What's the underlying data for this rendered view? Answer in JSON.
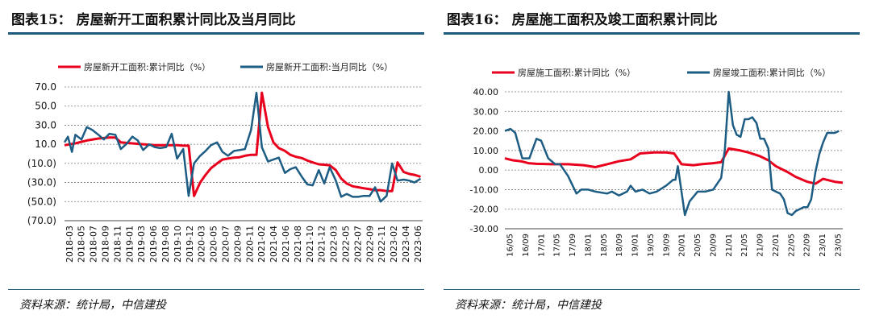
{
  "chart_data": [
    {
      "type": "line",
      "title": "图表15： 房屋新开工面积累计同比及当月同比",
      "source": "资料来源：统计局，中信建投",
      "yticks": [
        "70.0",
        "50.0",
        "30.0",
        "10.0",
        "(10.0)",
        "(30.0)",
        "(50.0)",
        "(70.0)"
      ],
      "ylim": [
        -70,
        70
      ],
      "xticks": [
        "2018-03",
        "2018-05",
        "2018-07",
        "2018-09",
        "2018-11",
        "2019-01",
        "2019-03",
        "2019-06",
        "2019-08",
        "2019-10",
        "2019-12",
        "2020-03",
        "2020-05",
        "2020-07",
        "2020-09",
        "2020-11",
        "2021-02",
        "2021-04",
        "2021-06",
        "2021-08",
        "2021-10",
        "2021-12",
        "2022-03",
        "2022-05",
        "2022-07",
        "2022-09",
        "2022-11",
        "2023-02",
        "2023-04",
        "2023-06"
      ],
      "xlim": [
        2018.17,
        2023.45
      ],
      "colors": {
        "s1": "#e8001c",
        "s2": "#1d5c83"
      },
      "series": [
        {
          "name": "房屋新开工面积:累计同比（%）",
          "points": [
            [
              2018.17,
              9
            ],
            [
              2018.33,
              11
            ],
            [
              2018.5,
              14
            ],
            [
              2018.67,
              16
            ],
            [
              2018.83,
              17
            ],
            [
              2018.92,
              17
            ],
            [
              2019.0,
              12
            ],
            [
              2019.17,
              11
            ],
            [
              2019.33,
              10
            ],
            [
              2019.5,
              9
            ],
            [
              2019.67,
              9
            ],
            [
              2019.83,
              9
            ],
            [
              2019.92,
              8.5
            ],
            [
              2020.0,
              8.5
            ],
            [
              2020.08,
              -44
            ],
            [
              2020.17,
              -30
            ],
            [
              2020.25,
              -22
            ],
            [
              2020.33,
              -15
            ],
            [
              2020.42,
              -10
            ],
            [
              2020.5,
              -6
            ],
            [
              2020.58,
              -5
            ],
            [
              2020.67,
              -4
            ],
            [
              2020.75,
              -3.5
            ],
            [
              2020.83,
              -2
            ],
            [
              2020.92,
              -1
            ],
            [
              2021.0,
              -1
            ],
            [
              2021.08,
              64
            ],
            [
              2021.17,
              28
            ],
            [
              2021.25,
              12
            ],
            [
              2021.33,
              6
            ],
            [
              2021.42,
              3
            ],
            [
              2021.5,
              -1
            ],
            [
              2021.58,
              -3
            ],
            [
              2021.67,
              -4.5
            ],
            [
              2021.75,
              -7
            ],
            [
              2021.83,
              -9
            ],
            [
              2021.92,
              -11
            ],
            [
              2022.0,
              -11.4
            ],
            [
              2022.08,
              -12
            ],
            [
              2022.17,
              -17
            ],
            [
              2022.25,
              -26
            ],
            [
              2022.33,
              -31
            ],
            [
              2022.42,
              -34
            ],
            [
              2022.5,
              -35
            ],
            [
              2022.58,
              -36
            ],
            [
              2022.67,
              -37
            ],
            [
              2022.75,
              -38
            ],
            [
              2022.83,
              -38
            ],
            [
              2022.92,
              -39
            ],
            [
              2023.0,
              -39
            ],
            [
              2023.08,
              -9
            ],
            [
              2023.17,
              -19
            ],
            [
              2023.25,
              -21
            ],
            [
              2023.33,
              -22
            ],
            [
              2023.42,
              -24
            ]
          ]
        },
        {
          "name": "房屋新开工面积:当月同比（%）",
          "points": [
            [
              2018.17,
              12
            ],
            [
              2018.22,
              18
            ],
            [
              2018.28,
              2
            ],
            [
              2018.33,
              20
            ],
            [
              2018.42,
              15
            ],
            [
              2018.5,
              28
            ],
            [
              2018.58,
              25
            ],
            [
              2018.67,
              20
            ],
            [
              2018.75,
              15
            ],
            [
              2018.83,
              21
            ],
            [
              2018.92,
              20
            ],
            [
              2019.0,
              5
            ],
            [
              2019.08,
              10
            ],
            [
              2019.17,
              18
            ],
            [
              2019.25,
              14
            ],
            [
              2019.33,
              4
            ],
            [
              2019.42,
              10
            ],
            [
              2019.5,
              7
            ],
            [
              2019.58,
              6
            ],
            [
              2019.67,
              7
            ],
            [
              2019.75,
              21
            ],
            [
              2019.83,
              -5
            ],
            [
              2019.92,
              5
            ],
            [
              2020.0,
              -44
            ],
            [
              2020.08,
              -10
            ],
            [
              2020.17,
              -2
            ],
            [
              2020.25,
              3
            ],
            [
              2020.33,
              9
            ],
            [
              2020.42,
              12
            ],
            [
              2020.5,
              2
            ],
            [
              2020.58,
              -2
            ],
            [
              2020.67,
              3
            ],
            [
              2020.75,
              4
            ],
            [
              2020.83,
              5
            ],
            [
              2020.92,
              25
            ],
            [
              2021.0,
              64
            ],
            [
              2021.08,
              7
            ],
            [
              2021.17,
              -8
            ],
            [
              2021.25,
              -6
            ],
            [
              2021.33,
              -4
            ],
            [
              2021.42,
              -20
            ],
            [
              2021.5,
              -16
            ],
            [
              2021.58,
              -14
            ],
            [
              2021.67,
              -24
            ],
            [
              2021.75,
              -32
            ],
            [
              2021.83,
              -33
            ],
            [
              2021.92,
              -17
            ],
            [
              2022.0,
              -31
            ],
            [
              2022.08,
              -14
            ],
            [
              2022.17,
              -28
            ],
            [
              2022.25,
              -45
            ],
            [
              2022.33,
              -42
            ],
            [
              2022.42,
              -45
            ],
            [
              2022.5,
              -45
            ],
            [
              2022.58,
              -44
            ],
            [
              2022.67,
              -44
            ],
            [
              2022.75,
              -35
            ],
            [
              2022.83,
              -50
            ],
            [
              2022.92,
              -44
            ],
            [
              2023.0,
              -10
            ],
            [
              2023.08,
              -28
            ],
            [
              2023.17,
              -27
            ],
            [
              2023.25,
              -28
            ],
            [
              2023.33,
              -30
            ],
            [
              2023.42,
              -26
            ]
          ]
        }
      ]
    },
    {
      "type": "line",
      "title": "图表16： 房屋施工面积及竣工面积累计同比",
      "source": "资料来源：统计局，中信建投",
      "yticks": [
        "40.00",
        "30.00",
        "20.00",
        "10.00",
        "0.00",
        "-10.00",
        "-20.00",
        "-30.00"
      ],
      "ylim": [
        -30,
        40
      ],
      "xticks": [
        "16/05",
        "16/09",
        "17/01",
        "17/05",
        "17/09",
        "18/01",
        "18/05",
        "18/09",
        "19/01",
        "19/05",
        "19/09",
        "20/01",
        "20/05",
        "20/09",
        "21/01",
        "21/05",
        "21/09",
        "22/01",
        "22/05",
        "22/09",
        "23/01",
        "23/05"
      ],
      "xlim": [
        2016.33,
        2023.5
      ],
      "colors": {
        "s1": "#e8001c",
        "s2": "#1d5c83"
      },
      "series": [
        {
          "name": "房屋施工面积:累计同比（%）",
          "points": [
            [
              2016.33,
              6
            ],
            [
              2016.5,
              5
            ],
            [
              2016.67,
              4.5
            ],
            [
              2016.83,
              3.5
            ],
            [
              2017.0,
              3.2
            ],
            [
              2017.33,
              3
            ],
            [
              2017.67,
              3
            ],
            [
              2018.0,
              2.5
            ],
            [
              2018.25,
              1.5
            ],
            [
              2018.5,
              3
            ],
            [
              2018.75,
              4.5
            ],
            [
              2019.0,
              5.5
            ],
            [
              2019.2,
              8.5
            ],
            [
              2019.5,
              9
            ],
            [
              2019.75,
              9
            ],
            [
              2019.92,
              8.5
            ],
            [
              2020.08,
              3
            ],
            [
              2020.33,
              2.5
            ],
            [
              2020.5,
              3
            ],
            [
              2020.75,
              3.5
            ],
            [
              2020.92,
              4
            ],
            [
              2021.08,
              11
            ],
            [
              2021.33,
              10
            ],
            [
              2021.5,
              9
            ],
            [
              2021.75,
              7
            ],
            [
              2021.92,
              5
            ],
            [
              2022.08,
              2
            ],
            [
              2022.33,
              -1
            ],
            [
              2022.5,
              -3.5
            ],
            [
              2022.75,
              -6
            ],
            [
              2022.92,
              -7
            ],
            [
              2023.08,
              -4.5
            ],
            [
              2023.33,
              -6
            ],
            [
              2023.5,
              -6.5
            ]
          ]
        },
        {
          "name": "房屋竣工面积:累计同比（%）",
          "points": [
            [
              2016.33,
              20
            ],
            [
              2016.45,
              21
            ],
            [
              2016.55,
              19
            ],
            [
              2016.7,
              6
            ],
            [
              2016.85,
              6
            ],
            [
              2017.0,
              16
            ],
            [
              2017.1,
              15
            ],
            [
              2017.25,
              6
            ],
            [
              2017.4,
              3
            ],
            [
              2017.5,
              3
            ],
            [
              2017.67,
              -3
            ],
            [
              2017.85,
              -12
            ],
            [
              2017.95,
              -10
            ],
            [
              2018.1,
              -10
            ],
            [
              2018.25,
              -11
            ],
            [
              2018.5,
              -12
            ],
            [
              2018.6,
              -11
            ],
            [
              2018.75,
              -13
            ],
            [
              2018.92,
              -11
            ],
            [
              2019.0,
              -8
            ],
            [
              2019.1,
              -11
            ],
            [
              2019.25,
              -10
            ],
            [
              2019.4,
              -12
            ],
            [
              2019.55,
              -11
            ],
            [
              2019.75,
              -8
            ],
            [
              2019.9,
              -5
            ],
            [
              2019.95,
              -5
            ],
            [
              2020.0,
              2
            ],
            [
              2020.15,
              -23
            ],
            [
              2020.25,
              -16
            ],
            [
              2020.42,
              -11
            ],
            [
              2020.58,
              -11
            ],
            [
              2020.75,
              -10
            ],
            [
              2020.92,
              -4
            ],
            [
              2021.0,
              11
            ],
            [
              2021.08,
              40
            ],
            [
              2021.17,
              23
            ],
            [
              2021.25,
              18
            ],
            [
              2021.33,
              17
            ],
            [
              2021.42,
              26
            ],
            [
              2021.5,
              26
            ],
            [
              2021.58,
              27
            ],
            [
              2021.67,
              24
            ],
            [
              2021.75,
              16
            ],
            [
              2021.83,
              16
            ],
            [
              2021.92,
              11
            ],
            [
              2022.0,
              -10
            ],
            [
              2022.08,
              -11
            ],
            [
              2022.17,
              -12
            ],
            [
              2022.25,
              -15
            ],
            [
              2022.33,
              -22
            ],
            [
              2022.42,
              -23
            ],
            [
              2022.5,
              -21
            ],
            [
              2022.67,
              -19
            ],
            [
              2022.75,
              -19
            ],
            [
              2022.83,
              -15
            ],
            [
              2022.92,
              -1
            ],
            [
              2023.0,
              8
            ],
            [
              2023.08,
              14
            ],
            [
              2023.17,
              19
            ],
            [
              2023.33,
              19
            ],
            [
              2023.42,
              20
            ]
          ]
        }
      ]
    }
  ]
}
